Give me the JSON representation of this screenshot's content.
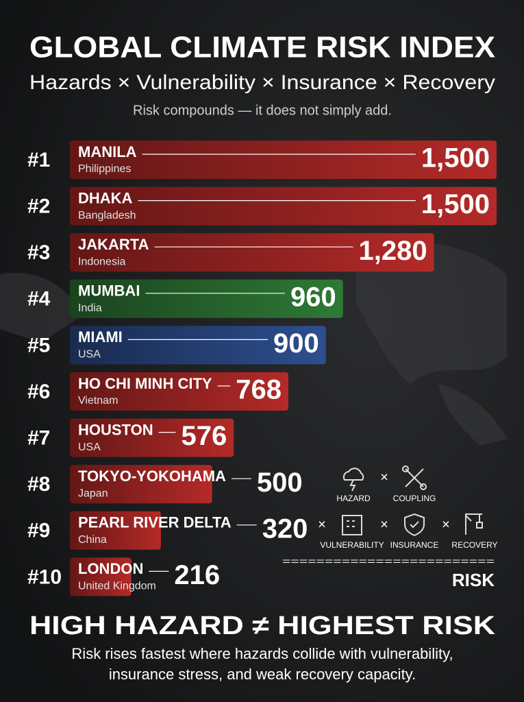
{
  "chart_data": {
    "type": "bar",
    "title": "GLOBAL CLIMATE RISK INDEX",
    "subtitle": "Hazards × Vulnerability × Insurance × Recovery",
    "tagline": "Risk compounds — it does not simply add.",
    "ranks": [
      "#1",
      "#2",
      "#3",
      "#4",
      "#5",
      "#6",
      "#7",
      "#8",
      "#9",
      "#10"
    ],
    "categories": [
      "MANILA",
      "DHAKA",
      "JAKARTA",
      "MUMBAI",
      "MIAMI",
      "HO CHI MINH CITY",
      "HOUSTON",
      "TOKYO-YOKOHAMA",
      "PEARL RIVER DELTA",
      "LONDON"
    ],
    "countries": [
      "Philippines",
      "Bangladesh",
      "Indonesia",
      "India",
      "USA",
      "Vietnam",
      "USA",
      "Japan",
      "China",
      "United Kingdom"
    ],
    "values": [
      1500,
      1500,
      1280,
      960,
      900,
      768,
      576,
      500,
      320,
      216
    ],
    "value_labels": [
      "1,500",
      "1,500",
      "1,280",
      "960",
      "900",
      "768",
      "576",
      "500",
      "320",
      "216"
    ],
    "colors": [
      "#b42a28",
      "#b42a28",
      "#b42a28",
      "#2f7a36",
      "#2d4f90",
      "#b42a28",
      "#b42a28",
      "#b42a28",
      "#b42a28",
      "#b42a28"
    ],
    "formula": {
      "operator": "×",
      "factors": [
        "HAZARD",
        "COUPLING",
        "VULNERABILITY",
        "INSURANCE",
        "RECOVERY"
      ],
      "equals": "=========================",
      "result": "RISK"
    },
    "footer": {
      "headline": "HIGH HAZARD ≠ HIGHEST RISK",
      "lines": [
        "Risk rises fastest where hazards collide with vulnerability,",
        "insurance stress, and weak recovery capacity."
      ]
    }
  }
}
